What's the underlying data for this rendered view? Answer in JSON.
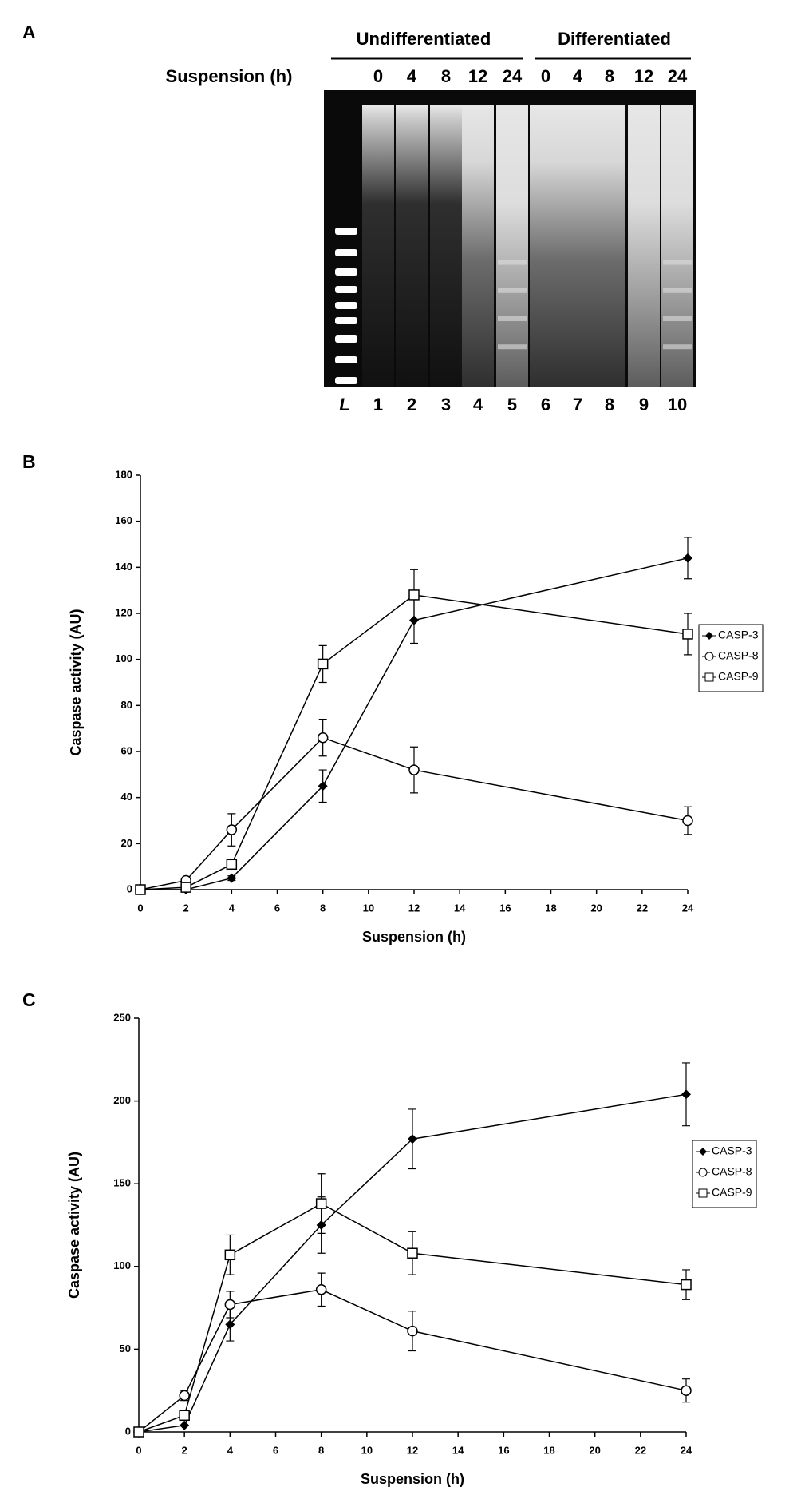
{
  "panel_a": {
    "label": "A",
    "groups": [
      "Undifferentiated",
      "Differentiated"
    ],
    "row_label": "Suspension (h)",
    "times": [
      "0",
      "4",
      "8",
      "12",
      "24",
      "0",
      "4",
      "8",
      "12",
      "24"
    ],
    "lanes": [
      "L",
      "1",
      "2",
      "3",
      "4",
      "5",
      "6",
      "7",
      "8",
      "9",
      "10"
    ]
  },
  "chart_data": [
    {
      "type": "line",
      "panel": "B",
      "x_label": "Suspension (h)",
      "y_label": "Caspase activity (AU)",
      "x": [
        0,
        2,
        4,
        8,
        12,
        24
      ],
      "xlim": [
        0,
        24
      ],
      "xticks": [
        0,
        2,
        4,
        6,
        8,
        10,
        12,
        14,
        16,
        18,
        20,
        22,
        24
      ],
      "ylim": [
        0,
        180
      ],
      "yticks": [
        0,
        20,
        40,
        60,
        80,
        100,
        120,
        140,
        160,
        180
      ],
      "legend": "right",
      "series": [
        {
          "name": "CASP-3",
          "color": "#000000",
          "marker": "diamond",
          "values": [
            0,
            0,
            5,
            45,
            117,
            144
          ],
          "errors": [
            0,
            0,
            1,
            7,
            10,
            9
          ]
        },
        {
          "name": "CASP-8",
          "color": "#000000",
          "marker": "circle",
          "values": [
            0,
            4,
            26,
            66,
            52,
            30
          ],
          "errors": [
            0,
            1,
            7,
            8,
            10,
            6
          ]
        },
        {
          "name": "CASP-9",
          "color": "#000000",
          "marker": "square",
          "values": [
            0,
            1,
            11,
            98,
            128,
            111
          ],
          "errors": [
            0,
            0,
            2,
            8,
            11,
            9
          ]
        }
      ]
    },
    {
      "type": "line",
      "panel": "C",
      "x_label": "Suspension (h)",
      "y_label": "Caspase activity (AU)",
      "x": [
        0,
        2,
        4,
        8,
        12,
        24
      ],
      "xlim": [
        0,
        24
      ],
      "xticks": [
        0,
        2,
        4,
        6,
        8,
        10,
        12,
        14,
        16,
        18,
        20,
        22,
        24
      ],
      "ylim": [
        0,
        250
      ],
      "yticks": [
        0,
        50,
        100,
        150,
        200,
        250
      ],
      "legend": "right",
      "series": [
        {
          "name": "CASP-3",
          "color": "#000000",
          "marker": "diamond",
          "values": [
            0,
            4,
            65,
            125,
            177,
            204
          ],
          "errors": [
            0,
            0,
            10,
            17,
            18,
            19
          ]
        },
        {
          "name": "CASP-8",
          "color": "#000000",
          "marker": "circle",
          "values": [
            0,
            22,
            77,
            86,
            61,
            25
          ],
          "errors": [
            0,
            3,
            8,
            10,
            12,
            7
          ]
        },
        {
          "name": "CASP-9",
          "color": "#000000",
          "marker": "square",
          "values": [
            0,
            10,
            107,
            138,
            108,
            89
          ],
          "errors": [
            0,
            2,
            12,
            18,
            13,
            9
          ]
        }
      ]
    }
  ]
}
